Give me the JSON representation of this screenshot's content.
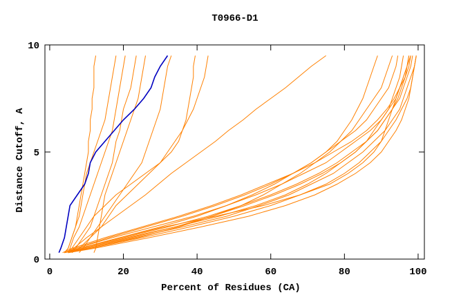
{
  "chart_data": {
    "type": "line",
    "title": "T0966-D1",
    "x_label": "Percent of Residues (CA)",
    "y_label": "Distance Cutoff, A",
    "xlim": [
      -1.3,
      101.7
    ],
    "ylim": [
      0,
      10
    ],
    "xticks": [
      0,
      20,
      40,
      60,
      80,
      100
    ],
    "yticks": [
      0,
      5,
      10
    ],
    "y": [
      0.3,
      0.5,
      1,
      1.5,
      2,
      2.5,
      3,
      3.5,
      4,
      4.5,
      5,
      5.5,
      6,
      6.5,
      7,
      7.5,
      8,
      8.5,
      9,
      9.5
    ],
    "series": [
      {
        "color": "#ff8000",
        "x": [
          4,
          8,
          20,
          32,
          43,
          52,
          60,
          67,
          73,
          78,
          82,
          86,
          89,
          91,
          93,
          95,
          96,
          97,
          98,
          98.5
        ]
      },
      {
        "color": "#ff8000",
        "x": [
          5,
          10,
          23,
          36,
          48,
          57,
          65,
          71,
          77,
          81,
          85,
          88,
          91,
          93,
          95,
          96,
          97,
          98,
          99,
          99.5
        ]
      },
      {
        "color": "#ff8000",
        "x": [
          4,
          7,
          17,
          28,
          39,
          48,
          56,
          63,
          69,
          75,
          79,
          83,
          87,
          90,
          92,
          94,
          95,
          96.5,
          97.5,
          98
        ]
      },
      {
        "color": "#ff8000",
        "x": [
          5,
          11,
          25,
          38,
          50,
          60,
          68,
          75,
          80,
          84,
          87,
          90,
          92,
          94,
          95.5,
          97,
          98,
          98.5,
          99,
          99.5
        ]
      },
      {
        "color": "#ff8000",
        "x": [
          3.5,
          6,
          15,
          25,
          35,
          44,
          52,
          59,
          66,
          72,
          77,
          82,
          86,
          89,
          91.5,
          93.5,
          95,
          96,
          97,
          97.5
        ]
      },
      {
        "color": "#ff8000",
        "x": [
          4,
          9,
          21,
          34,
          46,
          56,
          64,
          70,
          75,
          79,
          83,
          86,
          88,
          90,
          92,
          93,
          94,
          95,
          95.5,
          96
        ]
      },
      {
        "color": "#ff8000",
        "x": [
          5,
          12,
          27,
          41,
          54,
          64,
          72,
          78,
          83,
          87,
          90,
          92,
          94,
          95.5,
          96.5,
          97.5,
          98,
          98.5,
          99,
          99.5
        ]
      },
      {
        "color": "#ff8000",
        "x": [
          4,
          8,
          19,
          30,
          40,
          48,
          55,
          61,
          66,
          71,
          75,
          79,
          83,
          86,
          88,
          90,
          92,
          93,
          94,
          94.5
        ]
      },
      {
        "color": "#ff8000",
        "x": [
          4,
          8,
          19,
          31,
          45,
          58,
          68,
          76,
          81,
          85,
          88,
          90,
          91,
          92,
          93,
          94,
          95,
          96,
          97,
          98
        ]
      },
      {
        "color": "#ff8000",
        "x": [
          4,
          7,
          16,
          26,
          36,
          45,
          53,
          60,
          66,
          71,
          75,
          78,
          80,
          82,
          83.5,
          85,
          86,
          87,
          88,
          89
        ]
      },
      {
        "color": "#ff8000",
        "x": [
          5,
          9,
          22,
          34,
          44,
          53,
          61,
          68,
          74,
          79,
          83,
          86,
          89,
          91,
          93,
          94.5,
          95.5,
          96.5,
          97,
          97.5
        ]
      },
      {
        "color": "#ff8000",
        "x": [
          4,
          10,
          24,
          35,
          44,
          52,
          58,
          63,
          68,
          72,
          76,
          79,
          82,
          84,
          86,
          88,
          90,
          91,
          92,
          93
        ]
      },
      {
        "color": "#ff8000",
        "x": [
          4,
          5,
          6,
          7,
          7.5,
          8,
          8.5,
          9,
          9.5,
          10,
          10.5,
          10.5,
          11,
          11,
          11.5,
          11.5,
          12,
          12,
          12,
          12.5
        ]
      },
      {
        "color": "#ff8000",
        "x": [
          5,
          5.5,
          6.5,
          8,
          9,
          10,
          11,
          12,
          13,
          14,
          15,
          16,
          17,
          17.5,
          18,
          18.5,
          19,
          19.5,
          20,
          20.5
        ]
      },
      {
        "color": "#ff8000",
        "x": [
          6,
          7,
          9,
          11,
          12,
          13,
          14,
          15,
          16,
          17,
          17.5,
          18,
          19,
          19.5,
          20,
          21,
          22,
          22.5,
          23,
          23.5
        ]
      },
      {
        "color": "#ff8000",
        "x": [
          5,
          6,
          8,
          10,
          12,
          15,
          18,
          22,
          26,
          30,
          33,
          35,
          36,
          37,
          37.5,
          38,
          38.5,
          39,
          39,
          39.5
        ]
      },
      {
        "color": "#ff8000",
        "x": [
          6,
          8,
          11,
          14,
          16,
          18,
          21,
          24,
          27,
          30,
          32,
          34,
          36,
          37.5,
          39,
          40,
          41,
          42,
          42.5,
          43
        ]
      },
      {
        "color": "#ff8000",
        "x": [
          12,
          12.5,
          13,
          13.5,
          14,
          14.5,
          15,
          16,
          17,
          18,
          19,
          20,
          21,
          22,
          23,
          24,
          24.5,
          25,
          25.5,
          26
        ]
      },
      {
        "color": "#ff8000",
        "x": [
          4,
          5,
          6,
          7,
          8,
          8.5,
          9,
          9.5,
          10,
          11,
          12,
          13,
          14,
          15,
          15.5,
          16,
          16.5,
          17,
          17.5,
          18
        ]
      },
      {
        "color": "#ff8000",
        "x": [
          8,
          9,
          11,
          13,
          15,
          17,
          19,
          21,
          23,
          25,
          26,
          27,
          28,
          29,
          30,
          30.5,
          31,
          31.5,
          32,
          33
        ]
      },
      {
        "color": "#ff8000",
        "x": [
          5,
          6.5,
          10,
          14,
          18,
          22,
          26,
          29.5,
          33,
          37,
          41,
          45,
          48.5,
          52.5,
          56,
          60,
          64,
          67.5,
          71,
          75
        ]
      },
      {
        "color": "#0000c0",
        "x": [
          2.5,
          3,
          4,
          4.5,
          5,
          5.5,
          7.5,
          9.5,
          10.5,
          11,
          12.5,
          15,
          17.5,
          20,
          23,
          25.5,
          27.5,
          28.5,
          30,
          32
        ]
      }
    ]
  }
}
